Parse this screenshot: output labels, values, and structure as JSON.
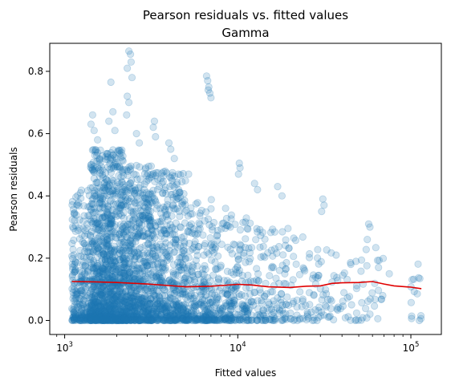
{
  "chart_data": {
    "type": "scatter",
    "title": "Pearson residuals vs. fitted values",
    "subtitle": "Gamma",
    "xlabel": "Fitted values",
    "ylabel": "Pearson residuals",
    "x_scale": "log",
    "xlim": [
      820,
      150000
    ],
    "ylim": [
      -0.045,
      0.89
    ],
    "x_ticks": [
      {
        "value": 1000,
        "base": "10",
        "exp": "3"
      },
      {
        "value": 10000,
        "base": "10",
        "exp": "4"
      },
      {
        "value": 100000,
        "base": "10",
        "exp": "5"
      }
    ],
    "y_ticks": [
      0.0,
      0.2,
      0.4,
      0.6,
      0.8
    ],
    "y_tick_labels": [
      "0.0",
      "0.2",
      "0.4",
      "0.6",
      "0.8"
    ],
    "grid": false,
    "point_color": "#1f77b4",
    "point_alpha": 0.2,
    "trend_color": "#e00000",
    "trend_line": {
      "x": [
        1100,
        1500,
        2000,
        3000,
        4000,
        5000,
        6000,
        7000,
        8000,
        10000,
        12000,
        15000,
        20000,
        25000,
        30000,
        35000,
        40000,
        50000,
        60000,
        70000,
        80000,
        100000,
        115000
      ],
      "y": [
        0.125,
        0.124,
        0.122,
        0.117,
        0.112,
        0.108,
        0.109,
        0.11,
        0.112,
        0.116,
        0.114,
        0.108,
        0.106,
        0.11,
        0.111,
        0.119,
        0.121,
        0.122,
        0.125,
        0.117,
        0.111,
        0.107,
        0.102
      ]
    },
    "scatter_clusters": [
      {
        "x": [
          1100,
          1400
        ],
        "y_max": 0.42,
        "count": 250,
        "skew": 2.5
      },
      {
        "x": [
          1400,
          2200
        ],
        "y_max": 0.55,
        "count": 1100,
        "skew": 2.2
      },
      {
        "x": [
          2200,
          3200
        ],
        "y_max": 0.5,
        "count": 650,
        "skew": 2.2
      },
      {
        "x": [
          3200,
          5000
        ],
        "y_max": 0.48,
        "count": 500,
        "skew": 2.3
      },
      {
        "x": [
          5000,
          7500
        ],
        "y_max": 0.4,
        "count": 280,
        "skew": 2.4
      },
      {
        "x": [
          7500,
          12000
        ],
        "y_max": 0.35,
        "count": 220,
        "skew": 2.4
      },
      {
        "x": [
          12000,
          20000
        ],
        "y_max": 0.3,
        "count": 130,
        "skew": 2.3
      },
      {
        "x": [
          20000,
          35000
        ],
        "y_max": 0.28,
        "count": 80,
        "skew": 2.1
      },
      {
        "x": [
          35000,
          70000
        ],
        "y_max": 0.24,
        "count": 55,
        "skew": 2.0
      },
      {
        "x": [
          100000,
          120000
        ],
        "y_max": 0.2,
        "count": 14,
        "skew": 1.6
      }
    ],
    "scatter_outliers": [
      [
        2350,
        0.865
      ],
      [
        2400,
        0.855
      ],
      [
        2420,
        0.83
      ],
      [
        2300,
        0.81
      ],
      [
        2450,
        0.78
      ],
      [
        2300,
        0.72
      ],
      [
        2350,
        0.7
      ],
      [
        2280,
        0.66
      ],
      [
        1850,
        0.765
      ],
      [
        1900,
        0.67
      ],
      [
        1800,
        0.64
      ],
      [
        1950,
        0.61
      ],
      [
        1450,
        0.66
      ],
      [
        1420,
        0.63
      ],
      [
        1480,
        0.61
      ],
      [
        1550,
        0.58
      ],
      [
        3300,
        0.64
      ],
      [
        3250,
        0.62
      ],
      [
        3350,
        0.59
      ],
      [
        4000,
        0.57
      ],
      [
        4100,
        0.55
      ],
      [
        4300,
        0.52
      ],
      [
        6600,
        0.785
      ],
      [
        6700,
        0.77
      ],
      [
        6800,
        0.75
      ],
      [
        6900,
        0.73
      ],
      [
        7000,
        0.715
      ],
      [
        6750,
        0.74
      ],
      [
        10200,
        0.505
      ],
      [
        10300,
        0.49
      ],
      [
        10100,
        0.47
      ],
      [
        12500,
        0.44
      ],
      [
        13000,
        0.42
      ],
      [
        17000,
        0.43
      ],
      [
        18000,
        0.4
      ],
      [
        31000,
        0.39
      ],
      [
        31500,
        0.37
      ],
      [
        30500,
        0.35
      ],
      [
        37000,
        0.21
      ],
      [
        57000,
        0.31
      ],
      [
        58000,
        0.3
      ],
      [
        56000,
        0.26
      ],
      [
        2600,
        0.6
      ],
      [
        2700,
        0.57
      ],
      [
        5200,
        0.47
      ],
      [
        8500,
        0.36
      ],
      [
        45000,
        0.18
      ],
      [
        65000,
        0.17
      ],
      [
        75000,
        0.15
      ]
    ]
  }
}
